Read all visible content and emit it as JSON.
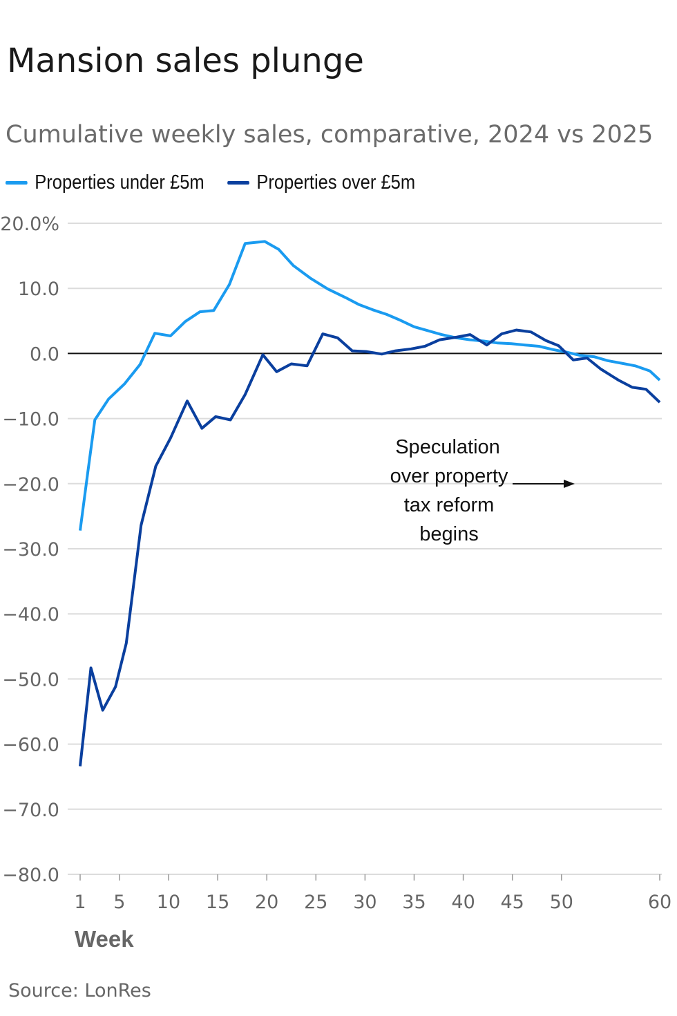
{
  "chart_data": {
    "type": "line",
    "title": "Mansion sales plunge",
    "subtitle": "Cumulative weekly sales, comparative, 2024 vs 2025",
    "xlabel": "Week",
    "ylabel": "",
    "xlim": [
      1,
      60
    ],
    "ylim": [
      -80,
      20
    ],
    "x_ticks": [
      1,
      5,
      10,
      15,
      20,
      25,
      30,
      35,
      40,
      45,
      50,
      60
    ],
    "y_ticks": [
      20,
      10,
      0,
      -10,
      -20,
      -30,
      -40,
      -50,
      -60,
      -70,
      -80
    ],
    "y_tick_labels": [
      "20.0%",
      "10.0",
      "0.0",
      "−10.0",
      "−20.0",
      "−30.0",
      "−40.0",
      "−50.0",
      "−60.0",
      "−70.0",
      "−80.0"
    ],
    "grid": true,
    "legend_position": "top-left",
    "series": [
      {
        "name": "Properties under £5m",
        "color": "#1a9bf0",
        "x": [
          1,
          1.8,
          2.5,
          3.9,
          5.5,
          7.1,
          8.6,
          10.2,
          11.7,
          13.2,
          14.6,
          16.2,
          17.8,
          19.8,
          21.2,
          22.7,
          24.5,
          26.2,
          28.0,
          29.4,
          30.8,
          32.2,
          33.6,
          35.0,
          36.4,
          37.8,
          39.3,
          40.7,
          42.1,
          43.5,
          44.9,
          46.3,
          47.7,
          49.1,
          50.5,
          51.9,
          53.3,
          54.7,
          56.1,
          57.5,
          59.0,
          60
        ],
        "y": [
          -27.2,
          -18.0,
          -10.2,
          -7.0,
          -4.7,
          -1.7,
          3.1,
          2.7,
          4.9,
          6.4,
          6.6,
          10.6,
          16.9,
          17.2,
          16.0,
          13.5,
          11.5,
          9.9,
          8.6,
          7.5,
          6.7,
          6.0,
          5.1,
          4.1,
          3.5,
          2.9,
          2.4,
          2.1,
          1.9,
          1.6,
          1.5,
          1.3,
          1.1,
          0.6,
          0.2,
          -0.3,
          -0.5,
          -1.1,
          -1.5,
          -1.9,
          -2.7,
          -4.1
        ]
      },
      {
        "name": "Properties over £5m",
        "color": "#0a3f9e",
        "x": [
          1.0,
          2.1,
          3.3,
          4.6,
          5.7,
          7.2,
          8.7,
          10.2,
          11.9,
          13.4,
          14.8,
          16.3,
          17.8,
          19.6,
          21.0,
          22.5,
          24.1,
          25.7,
          27.2,
          28.7,
          30.1,
          31.7,
          33.1,
          34.7,
          36.1,
          37.6,
          39.3,
          40.7,
          42.4,
          43.9,
          45.4,
          46.9,
          48.4,
          49.7,
          51.2,
          52.6,
          54.0,
          55.8,
          57.2,
          58.6,
          60.0
        ],
        "y": [
          -63.4,
          -48.3,
          -54.8,
          -51.2,
          -44.5,
          -26.4,
          -17.3,
          -13.0,
          -7.3,
          -11.5,
          -9.7,
          -10.2,
          -6.3,
          -0.2,
          -2.8,
          -1.6,
          -1.9,
          3.0,
          2.4,
          0.4,
          0.3,
          -0.1,
          0.4,
          0.7,
          1.1,
          2.1,
          2.5,
          2.9,
          1.3,
          3.0,
          3.6,
          3.3,
          2.0,
          1.2,
          -1.0,
          -0.7,
          -2.4,
          -4.1,
          -5.2,
          -5.5,
          -7.5
        ]
      }
    ],
    "annotation": {
      "lines": [
        "Speculation",
        "over property",
        "tax reform",
        "begins"
      ],
      "arrow": "right"
    }
  },
  "source": "Source: LonRes"
}
